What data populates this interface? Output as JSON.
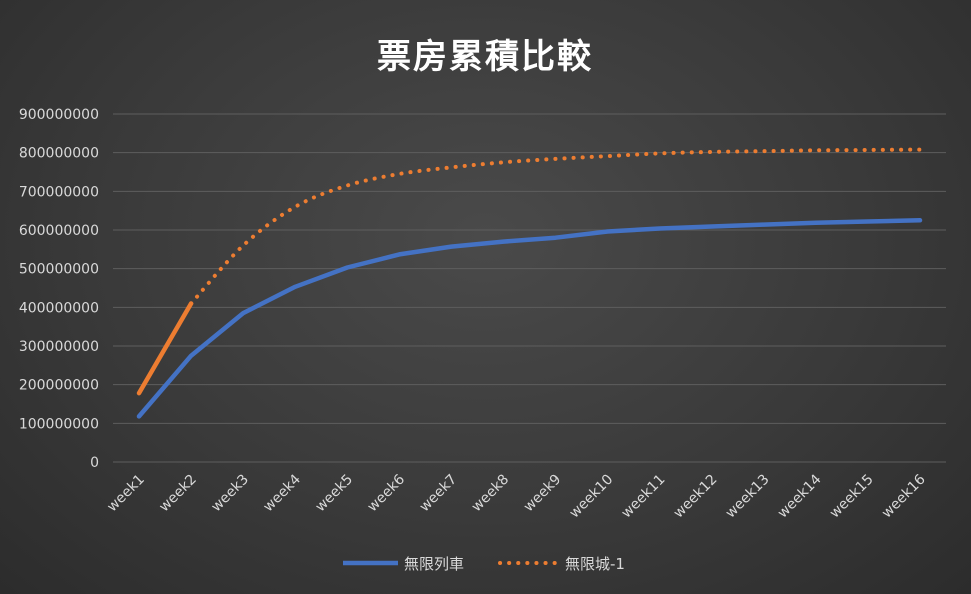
{
  "chart_data": {
    "type": "line",
    "title": "票房累積比較",
    "xlabel": "",
    "ylabel": "",
    "categories": [
      "week1",
      "week2",
      "week3",
      "week4",
      "week5",
      "week6",
      "week7",
      "week8",
      "week9",
      "week10",
      "week11",
      "week12",
      "week13",
      "week14",
      "week15",
      "week16"
    ],
    "ylim": [
      0,
      900000000
    ],
    "yticks": [
      0,
      100000000,
      200000000,
      300000000,
      400000000,
      500000000,
      600000000,
      700000000,
      800000000,
      900000000
    ],
    "ytick_labels": [
      "0",
      "100000000",
      "200000000",
      "300000000",
      "400000000",
      "500000000",
      "600000000",
      "700000000",
      "800000000",
      "900000000"
    ],
    "grid": true,
    "legend_position": "bottom",
    "series": [
      {
        "name": "無限列車",
        "color": "#4472C4",
        "style": "solid",
        "values": [
          118000000,
          275000000,
          385000000,
          453000000,
          503000000,
          537000000,
          557000000,
          570000000,
          580000000,
          596000000,
          604000000,
          609000000,
          614000000,
          619000000,
          622000000,
          625000000
        ]
      },
      {
        "name": "無限城-1",
        "color": "#ED7D31",
        "style": "solid-then-dotted",
        "values": [
          178000000,
          410000000,
          560000000,
          660000000,
          715000000,
          745000000,
          762000000,
          775000000,
          784000000,
          791000000,
          798000000,
          802000000,
          804000000,
          806000000,
          807000000,
          808000000
        ]
      }
    ]
  }
}
